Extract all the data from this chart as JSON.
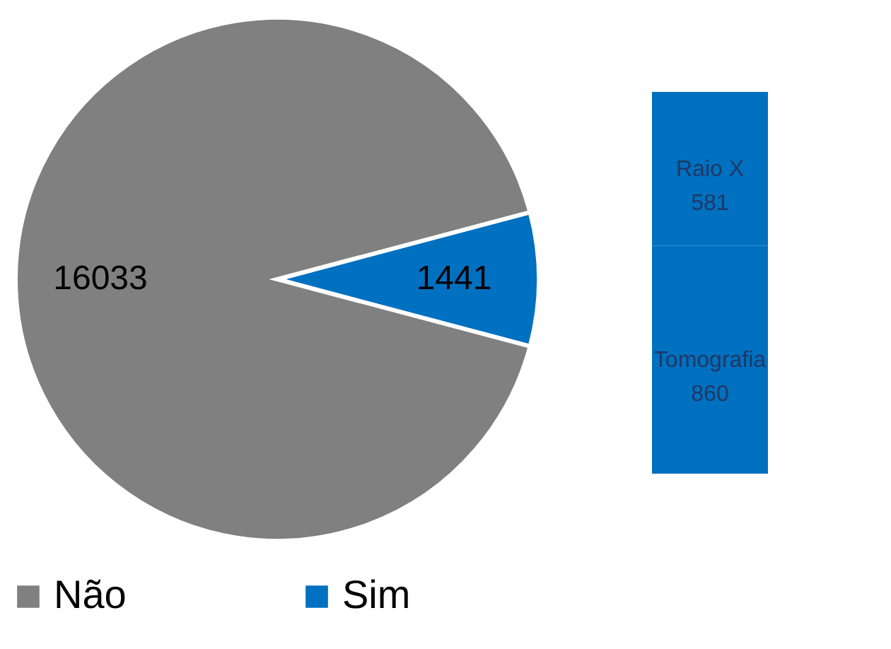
{
  "chart_data": [
    {
      "type": "pie",
      "categories": [
        "Não",
        "Sim"
      ],
      "values": [
        16033,
        1441
      ],
      "colors": [
        "#808080",
        "#0070c0"
      ],
      "data_labels": true,
      "legend": "bottom"
    },
    {
      "type": "bar",
      "stacked": true,
      "categories": [
        null
      ],
      "data_labels": true,
      "series": [
        {
          "name": "Tomografia",
          "color": "#0070c0",
          "values": [
            860
          ]
        },
        {
          "name": "Raio X",
          "color": "#0070c0",
          "values": [
            581
          ]
        }
      ]
    }
  ]
}
